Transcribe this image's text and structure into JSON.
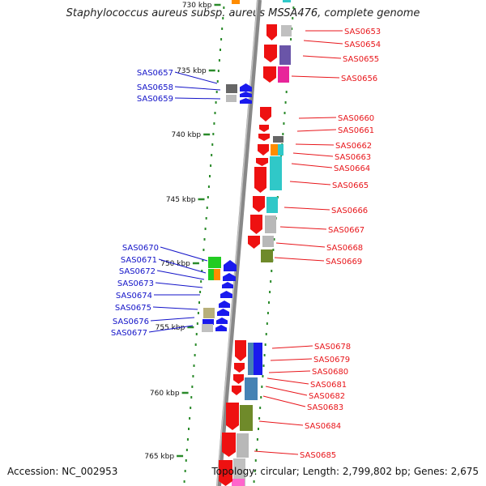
{
  "title": "Staphylococcus aureus subsp. aureus MSSA476, complete genome",
  "footer": {
    "accession": "Accession: NC_002953",
    "topology": "Topology: circular; Length: 2,799,802 bp; Genes: 2,675"
  },
  "scale": {
    "ticks": [
      {
        "label": "730 kbp"
      },
      {
        "label": "735 kbp"
      },
      {
        "label": "740 kbp"
      },
      {
        "label": "745 kbp"
      },
      {
        "label": "750 kbp"
      },
      {
        "label": "755 kbp"
      },
      {
        "label": "760 kbp"
      },
      {
        "label": "765 kbp"
      }
    ]
  },
  "genes": {
    "reverse": [
      "SAS0657",
      "SAS0658",
      "SAS0659",
      "SAS0670",
      "SAS0671",
      "SAS0672",
      "SAS0673",
      "SAS0674",
      "SAS0675",
      "SAS0676",
      "SAS0677"
    ],
    "forward": [
      "SAS0653",
      "SAS0654",
      "SAS0655",
      "SAS0656",
      "SAS0660",
      "SAS0661",
      "SAS0662",
      "SAS0663",
      "SAS0664",
      "SAS0665",
      "SAS0666",
      "SAS0667",
      "SAS0668",
      "SAS0669",
      "SAS0678",
      "SAS0679",
      "SAS0680",
      "SAS0681",
      "SAS0682",
      "SAS0683",
      "SAS0684",
      "SAS0685"
    ]
  },
  "colors": {
    "forward_label": "#e8161b",
    "reverse_label": "#1313c8",
    "forward_gene": "#ee1111",
    "reverse_gene": "#1a1aee",
    "tick_mark": "#2a8a2a",
    "backbone": "#8a8a8a"
  }
}
